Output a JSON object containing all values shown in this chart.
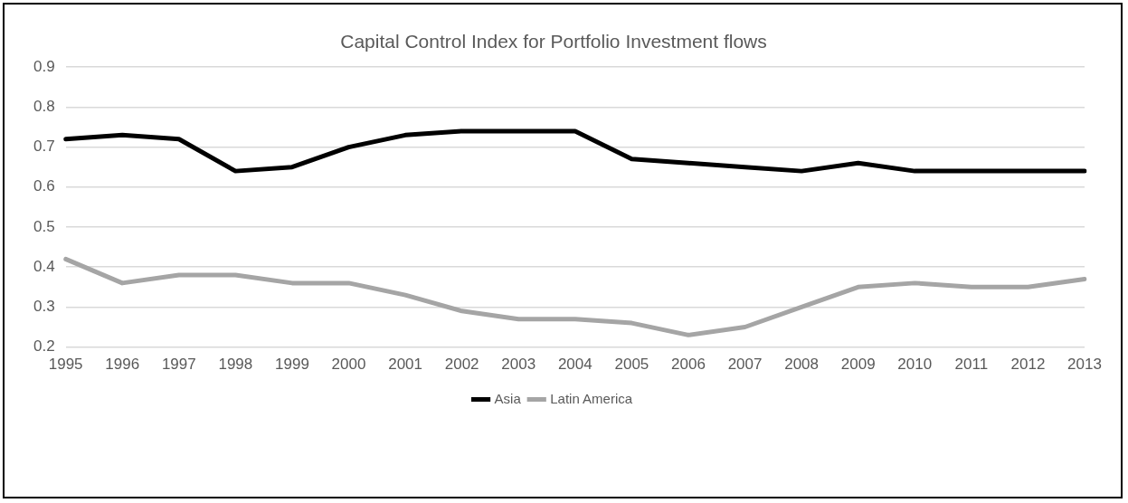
{
  "chart_data": {
    "type": "line",
    "title": "Capital Control Index for Portfolio Investment flows",
    "categories": [
      "1995",
      "1996",
      "1997",
      "1998",
      "1999",
      "2000",
      "2001",
      "2002",
      "2003",
      "2004",
      "2005",
      "2006",
      "2007",
      "2008",
      "2009",
      "2010",
      "2011",
      "2012",
      "2013"
    ],
    "series": [
      {
        "name": "Asia",
        "color": "#000000",
        "values": [
          0.72,
          0.73,
          0.72,
          0.64,
          0.65,
          0.7,
          0.73,
          0.74,
          0.74,
          0.74,
          0.67,
          0.66,
          0.65,
          0.64,
          0.66,
          0.64,
          0.64,
          0.64,
          0.64
        ]
      },
      {
        "name": "Latin America",
        "color": "#a5a5a5",
        "values": [
          0.42,
          0.36,
          0.38,
          0.38,
          0.36,
          0.36,
          0.33,
          0.29,
          0.27,
          0.27,
          0.26,
          0.23,
          0.25,
          0.3,
          0.35,
          0.36,
          0.35,
          0.35,
          0.37
        ]
      }
    ],
    "ylim": [
      0.2,
      0.9
    ],
    "yticks": [
      0.2,
      0.3,
      0.4,
      0.5,
      0.6,
      0.7,
      0.8,
      0.9
    ],
    "grid": "y",
    "legend": "bottom",
    "marker": "none",
    "line_style": "solid"
  }
}
